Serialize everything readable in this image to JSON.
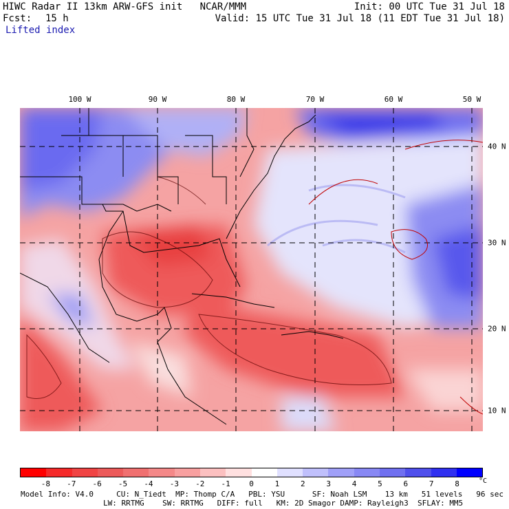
{
  "header": {
    "title_left": "HIWC Radar II 13km ARW-GFS init   NCAR/MMM",
    "init": "Init: 00 UTC Tue 31 Jul 18",
    "fcst_label": "Fcst:",
    "fcst_value": "15 h",
    "valid": "Valid: 15 UTC Tue 31 Jul 18 (11 EDT Tue 31 Jul 18)",
    "field": "Lifted index"
  },
  "axes": {
    "longitudes": [
      "100 W",
      "90 W",
      "80 W",
      "70 W",
      "60 W",
      "50 W"
    ],
    "latitudes": [
      "40 N",
      "30 N",
      "20 N",
      "10 N"
    ]
  },
  "colorbar": {
    "ticks": [
      "-8",
      "-7",
      "-6",
      "-5",
      "-4",
      "-3",
      "-2",
      "-1",
      "0",
      "1",
      "2",
      "3",
      "4",
      "5",
      "6",
      "7",
      "8"
    ],
    "unit": "°C",
    "colors": [
      "#ff0000",
      "#f52a2a",
      "#f04444",
      "#ec5a5a",
      "#f07070",
      "#f48888",
      "#f8a0a0",
      "#fcc0c0",
      "#ffe0e0",
      "#ffffff",
      "#e0e0ff",
      "#c0c0fc",
      "#a0a0f8",
      "#8888f4",
      "#7070f0",
      "#5050ec",
      "#3030f0",
      "#0000ff"
    ]
  },
  "footer": {
    "line1": "Model Info: V4.0     CU: N_Tiedt  MP: Thomp C/A   PBL: YSU      SF: Noah LSM    13 km   51 levels   96 sec",
    "line2": "LW: RRTMG    SW: RRTMG   DIFF: full   KM: 2D Smagor DAMP: Rayleigh3  SFLAY: MM5"
  }
}
